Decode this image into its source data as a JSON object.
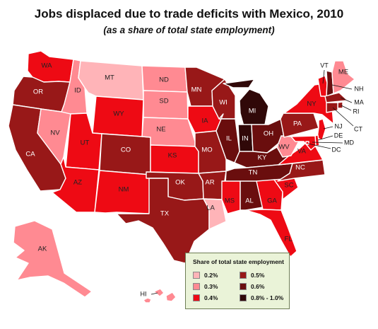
{
  "title": "Jobs displaced due to trade deficits with Mexico, 2010",
  "subtitle": "(as a share of total state employment)",
  "colors": {
    "0.2%": "#ffb4b8",
    "0.3%": "#ff8a92",
    "0.4%": "#ee0a14",
    "0.5%": "#981818",
    "0.6%": "#6a0e0e",
    "0.8% - 1.0%": "#300808"
  },
  "legend": {
    "title": "Share of total state employment",
    "items": [
      "0.2%",
      "0.3%",
      "0.4%",
      "0.5%",
      "0.6%",
      "0.8% - 1.0%"
    ]
  },
  "states": {
    "WA": "0.4%",
    "OR": "0.5%",
    "CA": "0.5%",
    "NV": "0.3%",
    "ID": "0.3%",
    "MT": "0.2%",
    "WY": "0.4%",
    "UT": "0.4%",
    "AZ": "0.4%",
    "CO": "0.5%",
    "NM": "0.4%",
    "ND": "0.3%",
    "SD": "0.3%",
    "NE": "0.3%",
    "KS": "0.4%",
    "OK": "0.5%",
    "TX": "0.5%",
    "MN": "0.5%",
    "IA": "0.4%",
    "MO": "0.5%",
    "AR": "0.5%",
    "LA": "0.2%",
    "WI": "0.5%",
    "IL": "0.6%",
    "MI": "0.8% - 1.0%",
    "IN": "0.8% - 1.0%",
    "OH": "0.6%",
    "KY": "0.6%",
    "TN": "0.6%",
    "MS": "0.4%",
    "AL": "0.6%",
    "GA": "0.4%",
    "FL": "0.4%",
    "SC": "0.4%",
    "NC": "0.5%",
    "VA": "0.4%",
    "WV": "0.3%",
    "PA": "0.5%",
    "NY": "0.4%",
    "VT": "0.4%",
    "NH": "0.6%",
    "ME": "0.3%",
    "MA": "0.5%",
    "RI": "0.5%",
    "CT": "0.5%",
    "NJ": "0.4%",
    "DE": "0.4%",
    "MD": "0.4%",
    "DC": "0.4%",
    "AK": "0.3%",
    "HI": "0.3%"
  }
}
